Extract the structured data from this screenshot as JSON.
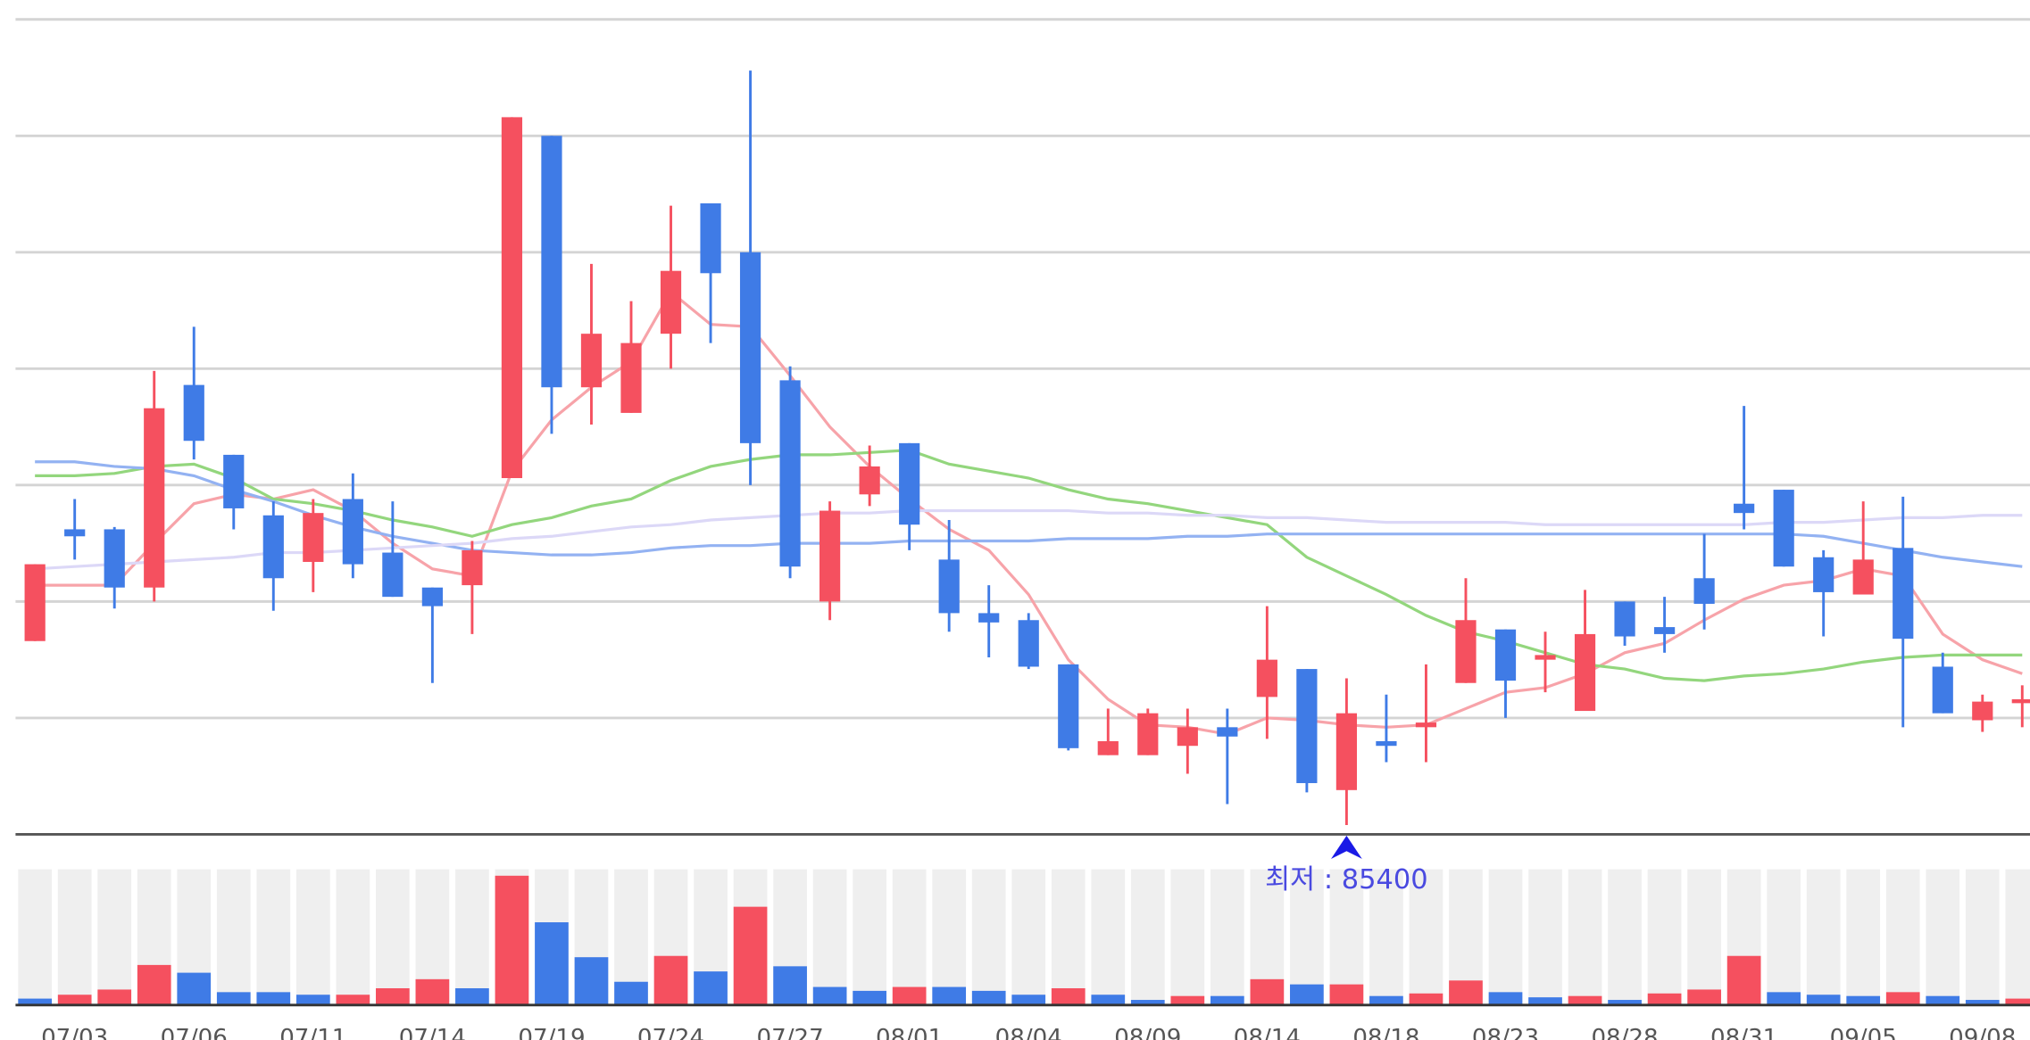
{
  "chart_data": {
    "type": "candlestick",
    "categories": [
      null,
      "07/03",
      null,
      null,
      "07/06",
      null,
      null,
      "07/11",
      null,
      null,
      "07/14",
      null,
      null,
      "07/19",
      null,
      null,
      "07/24",
      null,
      null,
      "07/27",
      null,
      null,
      "08/01",
      null,
      null,
      "08/04",
      null,
      null,
      "08/09",
      null,
      null,
      "08/14",
      null,
      null,
      "08/18",
      null,
      null,
      "08/23",
      null,
      null,
      "08/28",
      null,
      null,
      "08/31",
      null,
      null,
      "09/05",
      null,
      null,
      "09/08",
      null
    ],
    "open": [
      93300,
      98100,
      98100,
      95600,
      104300,
      101300,
      98700,
      96700,
      99400,
      97100,
      95600,
      95700,
      100300,
      115000,
      104200,
      103100,
      106500,
      112100,
      110000,
      104500,
      95000,
      99600,
      101800,
      96800,
      94500,
      94200,
      92300,
      88400,
      88400,
      88800,
      89600,
      90900,
      92100,
      86900,
      89000,
      89600,
      91500,
      93800,
      92500,
      90300,
      95000,
      93900,
      96000,
      99200,
      99800,
      96900,
      95300,
      97300,
      92200,
      89900,
      90700
    ],
    "high": [
      96600,
      99400,
      98200,
      104900,
      106800,
      101300,
      99300,
      99400,
      100500,
      99300,
      95600,
      97600,
      115800,
      115000,
      109500,
      107900,
      112000,
      112100,
      117800,
      105100,
      99300,
      101700,
      101800,
      98500,
      95700,
      94500,
      92300,
      90400,
      90400,
      90400,
      90400,
      94800,
      92100,
      91700,
      91000,
      92300,
      96000,
      93800,
      93700,
      95500,
      95000,
      95200,
      97900,
      103400,
      99800,
      97200,
      99300,
      99500,
      92800,
      91000,
      91400
    ],
    "low": [
      93300,
      96800,
      94700,
      95000,
      101100,
      98100,
      94600,
      95400,
      96000,
      95200,
      91500,
      93600,
      100300,
      102200,
      102600,
      103100,
      105000,
      106100,
      100000,
      96000,
      94200,
      99100,
      97200,
      93700,
      92600,
      92100,
      88600,
      88400,
      88400,
      87600,
      86300,
      89100,
      86800,
      85400,
      88100,
      88100,
      91500,
      90000,
      91100,
      90300,
      93100,
      92800,
      93800,
      98100,
      96500,
      93500,
      95300,
      89600,
      90200,
      89400,
      89600
    ],
    "close": [
      96600,
      97800,
      95600,
      103300,
      101900,
      99000,
      96000,
      98800,
      96600,
      95200,
      94800,
      97200,
      115800,
      104200,
      106500,
      106100,
      109200,
      109100,
      101800,
      96500,
      98900,
      100800,
      98300,
      94500,
      94100,
      92200,
      88700,
      89000,
      90200,
      89600,
      89200,
      92500,
      87200,
      90200,
      88800,
      89800,
      94200,
      91600,
      92700,
      93600,
      93500,
      93600,
      94900,
      98800,
      96500,
      95400,
      96800,
      93400,
      90200,
      90700,
      90800
    ],
    "up_color": "#f5505f",
    "down_color": "#3f7be6",
    "ylim": [
      85000,
      120000
    ],
    "moving_averages": [
      {
        "color": "#f7a3a9",
        "values": [
          95700,
          95700,
          95700,
          97500,
          99200,
          99600,
          99400,
          99800,
          98900,
          97500,
          96400,
          96100,
          100600,
          102800,
          104200,
          105300,
          108300,
          106900,
          106800,
          104700,
          102500,
          100800,
          99400,
          98100,
          97200,
          95300,
          92500,
          90800,
          89700,
          89600,
          89300,
          90000,
          89900,
          89700,
          89600,
          89700,
          90400,
          91100,
          91300,
          91900,
          92800,
          93200,
          94200,
          95100,
          95700,
          95900,
          96400,
          96100,
          93600,
          92500,
          91900
        ]
      },
      {
        "color": "#93d67d",
        "values": [
          100400,
          100400,
          100500,
          100800,
          100900,
          100300,
          99400,
          99200,
          98900,
          98500,
          98200,
          97800,
          98300,
          98600,
          99100,
          99400,
          100200,
          100800,
          101100,
          101300,
          101300,
          101400,
          101500,
          100900,
          100600,
          100300,
          99800,
          99400,
          99200,
          98900,
          98600,
          98300,
          96900,
          96100,
          95300,
          94400,
          93700,
          93300,
          92800,
          92300,
          92100,
          91700,
          91600,
          91800,
          91900,
          92100,
          92400,
          92600,
          92700,
          92700,
          92700
        ]
      },
      {
        "color": "#93b2f2",
        "values": [
          101000,
          101000,
          100800,
          100700,
          100400,
          99800,
          99300,
          98700,
          98200,
          97800,
          97500,
          97200,
          97100,
          97000,
          97000,
          97100,
          97300,
          97400,
          97400,
          97500,
          97500,
          97500,
          97600,
          97600,
          97600,
          97600,
          97700,
          97700,
          97700,
          97800,
          97800,
          97900,
          97900,
          97900,
          97900,
          97900,
          97900,
          97900,
          97900,
          97900,
          97900,
          97900,
          97900,
          97900,
          97900,
          97800,
          97500,
          97200,
          96900,
          96700,
          96500
        ]
      },
      {
        "color": "#dcd8f7",
        "values": [
          96400,
          96500,
          96600,
          96700,
          96800,
          96900,
          97100,
          97100,
          97200,
          97300,
          97400,
          97500,
          97700,
          97800,
          98000,
          98200,
          98300,
          98500,
          98600,
          98700,
          98800,
          98800,
          98900,
          98900,
          98900,
          98900,
          98900,
          98800,
          98800,
          98700,
          98700,
          98600,
          98600,
          98500,
          98400,
          98400,
          98400,
          98400,
          98300,
          98300,
          98300,
          98300,
          98300,
          98300,
          98400,
          98400,
          98500,
          98600,
          98600,
          98700,
          98700
        ]
      }
    ],
    "volume": [
      50000,
      80000,
      120000,
      310000,
      250000,
      100000,
      100000,
      80000,
      80000,
      130000,
      200000,
      130000,
      1000000,
      640000,
      370000,
      180000,
      380000,
      260000,
      760000,
      300000,
      140000,
      110000,
      140000,
      140000,
      110000,
      80000,
      130000,
      80000,
      40000,
      70000,
      70000,
      200000,
      160000,
      160000,
      70000,
      90000,
      190000,
      100000,
      60000,
      70000,
      40000,
      90000,
      120000,
      380000,
      100000,
      80000,
      70000,
      100000,
      70000,
      40000,
      50000
    ],
    "volume_colors": [
      "#3f7be6",
      "#f5505f",
      "#f5505f",
      "#f5505f",
      "#3f7be6",
      "#3f7be6",
      "#3f7be6",
      "#3f7be6",
      "#f5505f",
      "#f5505f",
      "#f5505f",
      "#3f7be6",
      "#f5505f",
      "#3f7be6",
      "#3f7be6",
      "#3f7be6",
      "#f5505f",
      "#3f7be6",
      "#f5505f",
      "#3f7be6",
      "#3f7be6",
      "#3f7be6",
      "#f5505f",
      "#3f7be6",
      "#3f7be6",
      "#3f7be6",
      "#f5505f",
      "#3f7be6",
      "#3f7be6",
      "#f5505f",
      "#3f7be6",
      "#f5505f",
      "#3f7be6",
      "#f5505f",
      "#3f7be6",
      "#f5505f",
      "#f5505f",
      "#3f7be6",
      "#3f7be6",
      "#f5505f",
      "#3f7be6",
      "#f5505f",
      "#f5505f",
      "#f5505f",
      "#3f7be6",
      "#3f7be6",
      "#3f7be6",
      "#f5505f",
      "#3f7be6",
      "#3f7be6",
      "#f5505f"
    ],
    "volume_ylim": [
      0,
      1050000
    ],
    "annotation": "최저 : 85400"
  }
}
